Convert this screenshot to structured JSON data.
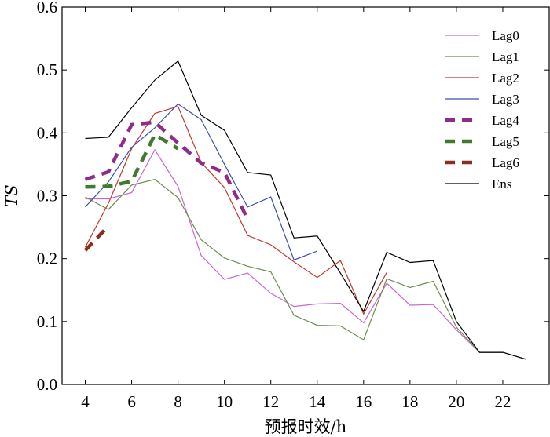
{
  "chart_data": {
    "type": "line",
    "title": "",
    "xlabel": "预报时效/h",
    "ylabel": "TS",
    "xlim": [
      3,
      24
    ],
    "ylim": [
      0,
      0.6
    ],
    "xticks": [
      4,
      6,
      8,
      10,
      12,
      14,
      16,
      18,
      20,
      22
    ],
    "xtick_labels": [
      "4",
      "6",
      "8",
      "10",
      "12",
      "14",
      "16",
      "18",
      "20",
      "22"
    ],
    "yticks": [
      0,
      0.1,
      0.2,
      0.3,
      0.4,
      0.5,
      0.6
    ],
    "ytick_labels": [
      "0.0",
      "0.1",
      "0.2",
      "0.3",
      "0.4",
      "0.5",
      "0.6"
    ],
    "grid": false,
    "legend_position": "top-right",
    "series": [
      {
        "name": "Lag0",
        "color": "#cc66cc",
        "dashed": false,
        "x": [
          4,
          5,
          6,
          7,
          8,
          9,
          10,
          11,
          12,
          13,
          14,
          15,
          16,
          17,
          18,
          19,
          20,
          21,
          22,
          23
        ],
        "y": [
          0.295,
          0.295,
          0.305,
          0.373,
          0.315,
          0.205,
          0.167,
          0.177,
          0.145,
          0.124,
          0.128,
          0.129,
          0.098,
          0.161,
          0.126,
          0.127,
          0.087,
          0.051,
          0.051,
          0.04
        ]
      },
      {
        "name": "Lag1",
        "color": "#6b8e4e",
        "dashed": false,
        "x": [
          4,
          5,
          6,
          7,
          8,
          9,
          10,
          11,
          12,
          13,
          14,
          15,
          16,
          17,
          18,
          19,
          20,
          21,
          22,
          23
        ],
        "y": [
          0.298,
          0.278,
          0.317,
          0.326,
          0.297,
          0.23,
          0.201,
          0.188,
          0.179,
          0.11,
          0.094,
          0.093,
          0.071,
          0.168,
          0.154,
          0.164,
          0.091,
          0.051,
          0.051,
          0.04
        ]
      },
      {
        "name": "Lag2",
        "color": "#c0392b",
        "dashed": false,
        "x": [
          4,
          5,
          6,
          7,
          8,
          9,
          10,
          11,
          12,
          13,
          14,
          15,
          16,
          17
        ],
        "y": [
          0.218,
          0.288,
          0.375,
          0.431,
          0.442,
          0.353,
          0.313,
          0.237,
          0.222,
          0.195,
          0.17,
          0.197,
          0.112,
          0.178
        ]
      },
      {
        "name": "Lag3",
        "color": "#3b4ea8",
        "dashed": false,
        "x": [
          4,
          5,
          6,
          7,
          8,
          9,
          10,
          11,
          12,
          13,
          14
        ],
        "y": [
          0.282,
          0.322,
          0.377,
          0.408,
          0.446,
          0.421,
          0.35,
          0.282,
          0.298,
          0.198,
          0.212
        ]
      },
      {
        "name": "Lag4",
        "color": "#8e2c8e",
        "dashed": true,
        "x": [
          4,
          5,
          6,
          7,
          8,
          9,
          10,
          11
        ],
        "y": [
          0.326,
          0.338,
          0.413,
          0.417,
          0.384,
          0.352,
          0.337,
          0.263
        ]
      },
      {
        "name": "Lag5",
        "color": "#3f7a2e",
        "dashed": true,
        "x": [
          4,
          5,
          6,
          7,
          8
        ],
        "y": [
          0.314,
          0.315,
          0.323,
          0.397,
          0.375
        ]
      },
      {
        "name": "Lag6",
        "color": "#8b2e20",
        "dashed": true,
        "x": [
          4,
          5
        ],
        "y": [
          0.213,
          0.252
        ]
      },
      {
        "name": "Ens",
        "color": "#000000",
        "dashed": false,
        "x": [
          4,
          5,
          6,
          7,
          8,
          9,
          10,
          11,
          12,
          13,
          14,
          15,
          16,
          17,
          18,
          19,
          20,
          21,
          22,
          23
        ],
        "y": [
          0.391,
          0.393,
          0.44,
          0.484,
          0.514,
          0.428,
          0.404,
          0.337,
          0.333,
          0.233,
          0.236,
          0.177,
          0.116,
          0.21,
          0.194,
          0.197,
          0.1,
          0.051,
          0.051,
          0.04
        ]
      }
    ]
  }
}
